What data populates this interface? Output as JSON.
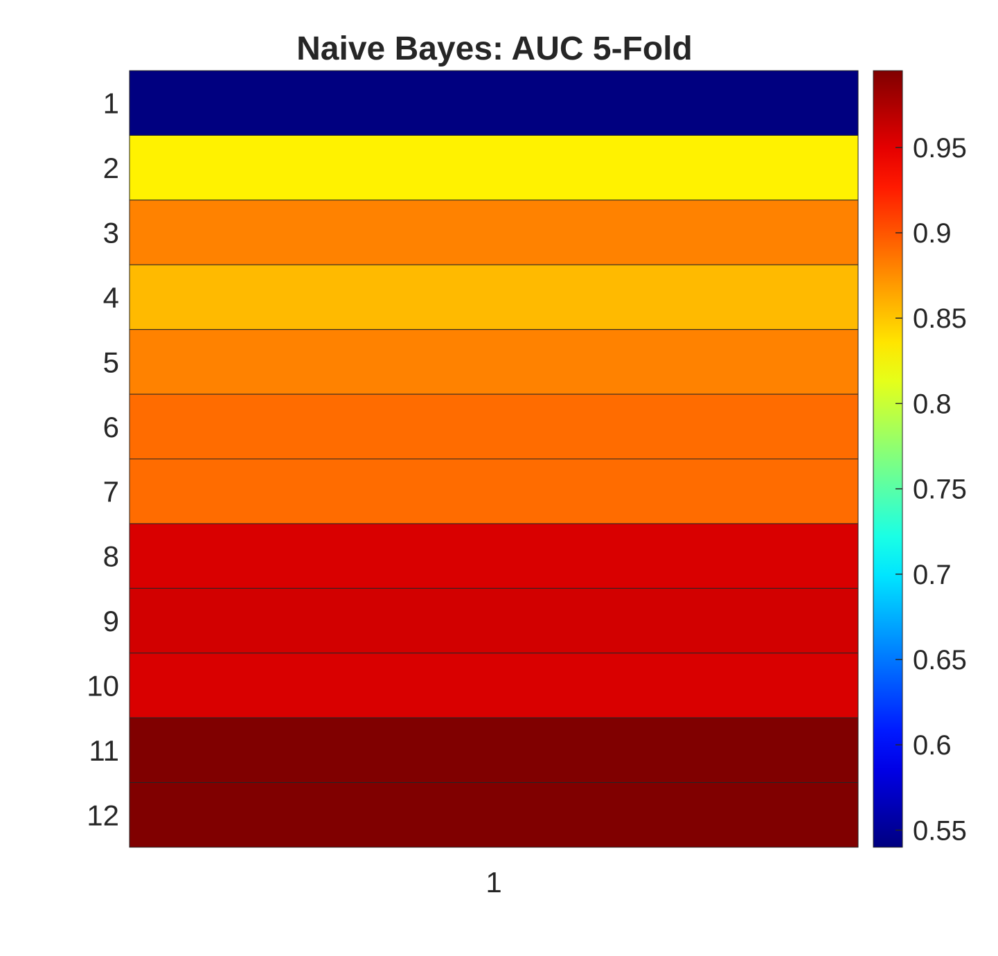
{
  "chart_data": {
    "type": "heatmap",
    "title": "Naive Bayes: AUC 5-Fold",
    "xlabel": "",
    "ylabel": "",
    "x_categories": [
      "1"
    ],
    "y_categories": [
      "1",
      "2",
      "3",
      "4",
      "5",
      "6",
      "7",
      "8",
      "9",
      "10",
      "11",
      "12"
    ],
    "values": [
      0.54,
      0.83,
      0.88,
      0.855,
      0.88,
      0.89,
      0.89,
      0.955,
      0.958,
      0.955,
      0.995,
      0.995
    ],
    "colormap": "jet",
    "color_limits": [
      0.54,
      0.995
    ],
    "colorbar": {
      "ticks": [
        0.55,
        0.6,
        0.65,
        0.7,
        0.75,
        0.8,
        0.85,
        0.9,
        0.95
      ],
      "tick_labels": [
        "0.55",
        "0.6",
        "0.65",
        "0.7",
        "0.75",
        "0.8",
        "0.85",
        "0.9",
        "0.95"
      ],
      "placement": "right"
    },
    "grid": false
  }
}
